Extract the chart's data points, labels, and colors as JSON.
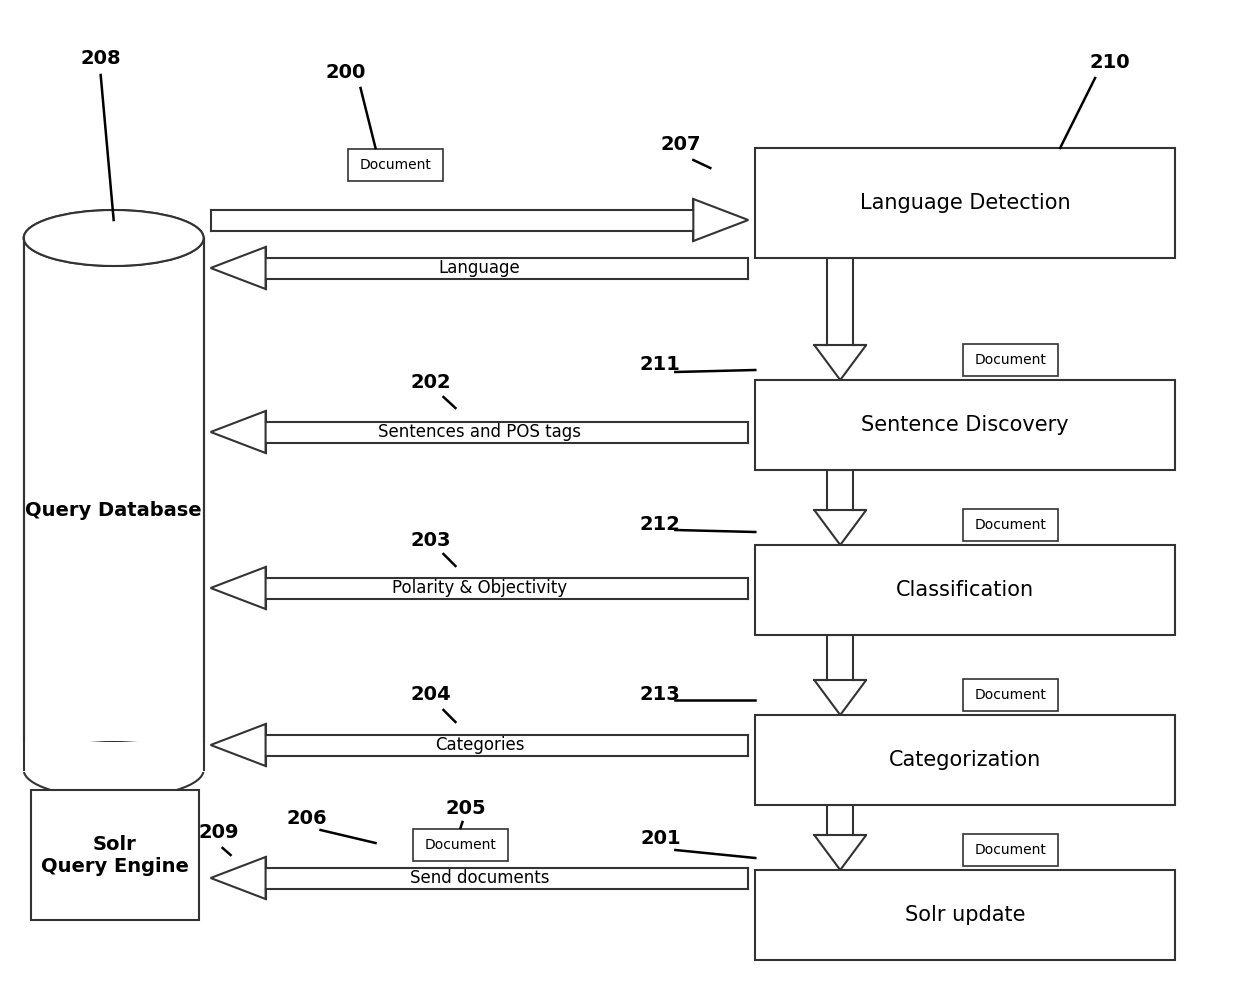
{
  "bg_color": "#ffffff",
  "ec": "#333333",
  "arrow_fill": "#ffffff",
  "arrow_ec": "#333333",
  "box_labels": {
    "lang_detect": "Language Detection",
    "sent_discovery": "Sentence Discovery",
    "classification": "Classification",
    "categorization": "Categorization",
    "solr_update": "Solr update",
    "query_db": "Query Database",
    "solr_engine": "Solr\nQuery Engine"
  },
  "arrow_labels": {
    "right207": "",
    "left_lang": "Language",
    "left202": "Sentences and POS tags",
    "left203": "Polarity & Objectivity",
    "left204": "Categories",
    "left_send": "Send documents"
  },
  "ref_numbers": [
    "208",
    "200",
    "210",
    "207",
    "202",
    "211",
    "203",
    "212",
    "204",
    "213",
    "209",
    "206",
    "205",
    "201"
  ],
  "doc_label": "Document"
}
